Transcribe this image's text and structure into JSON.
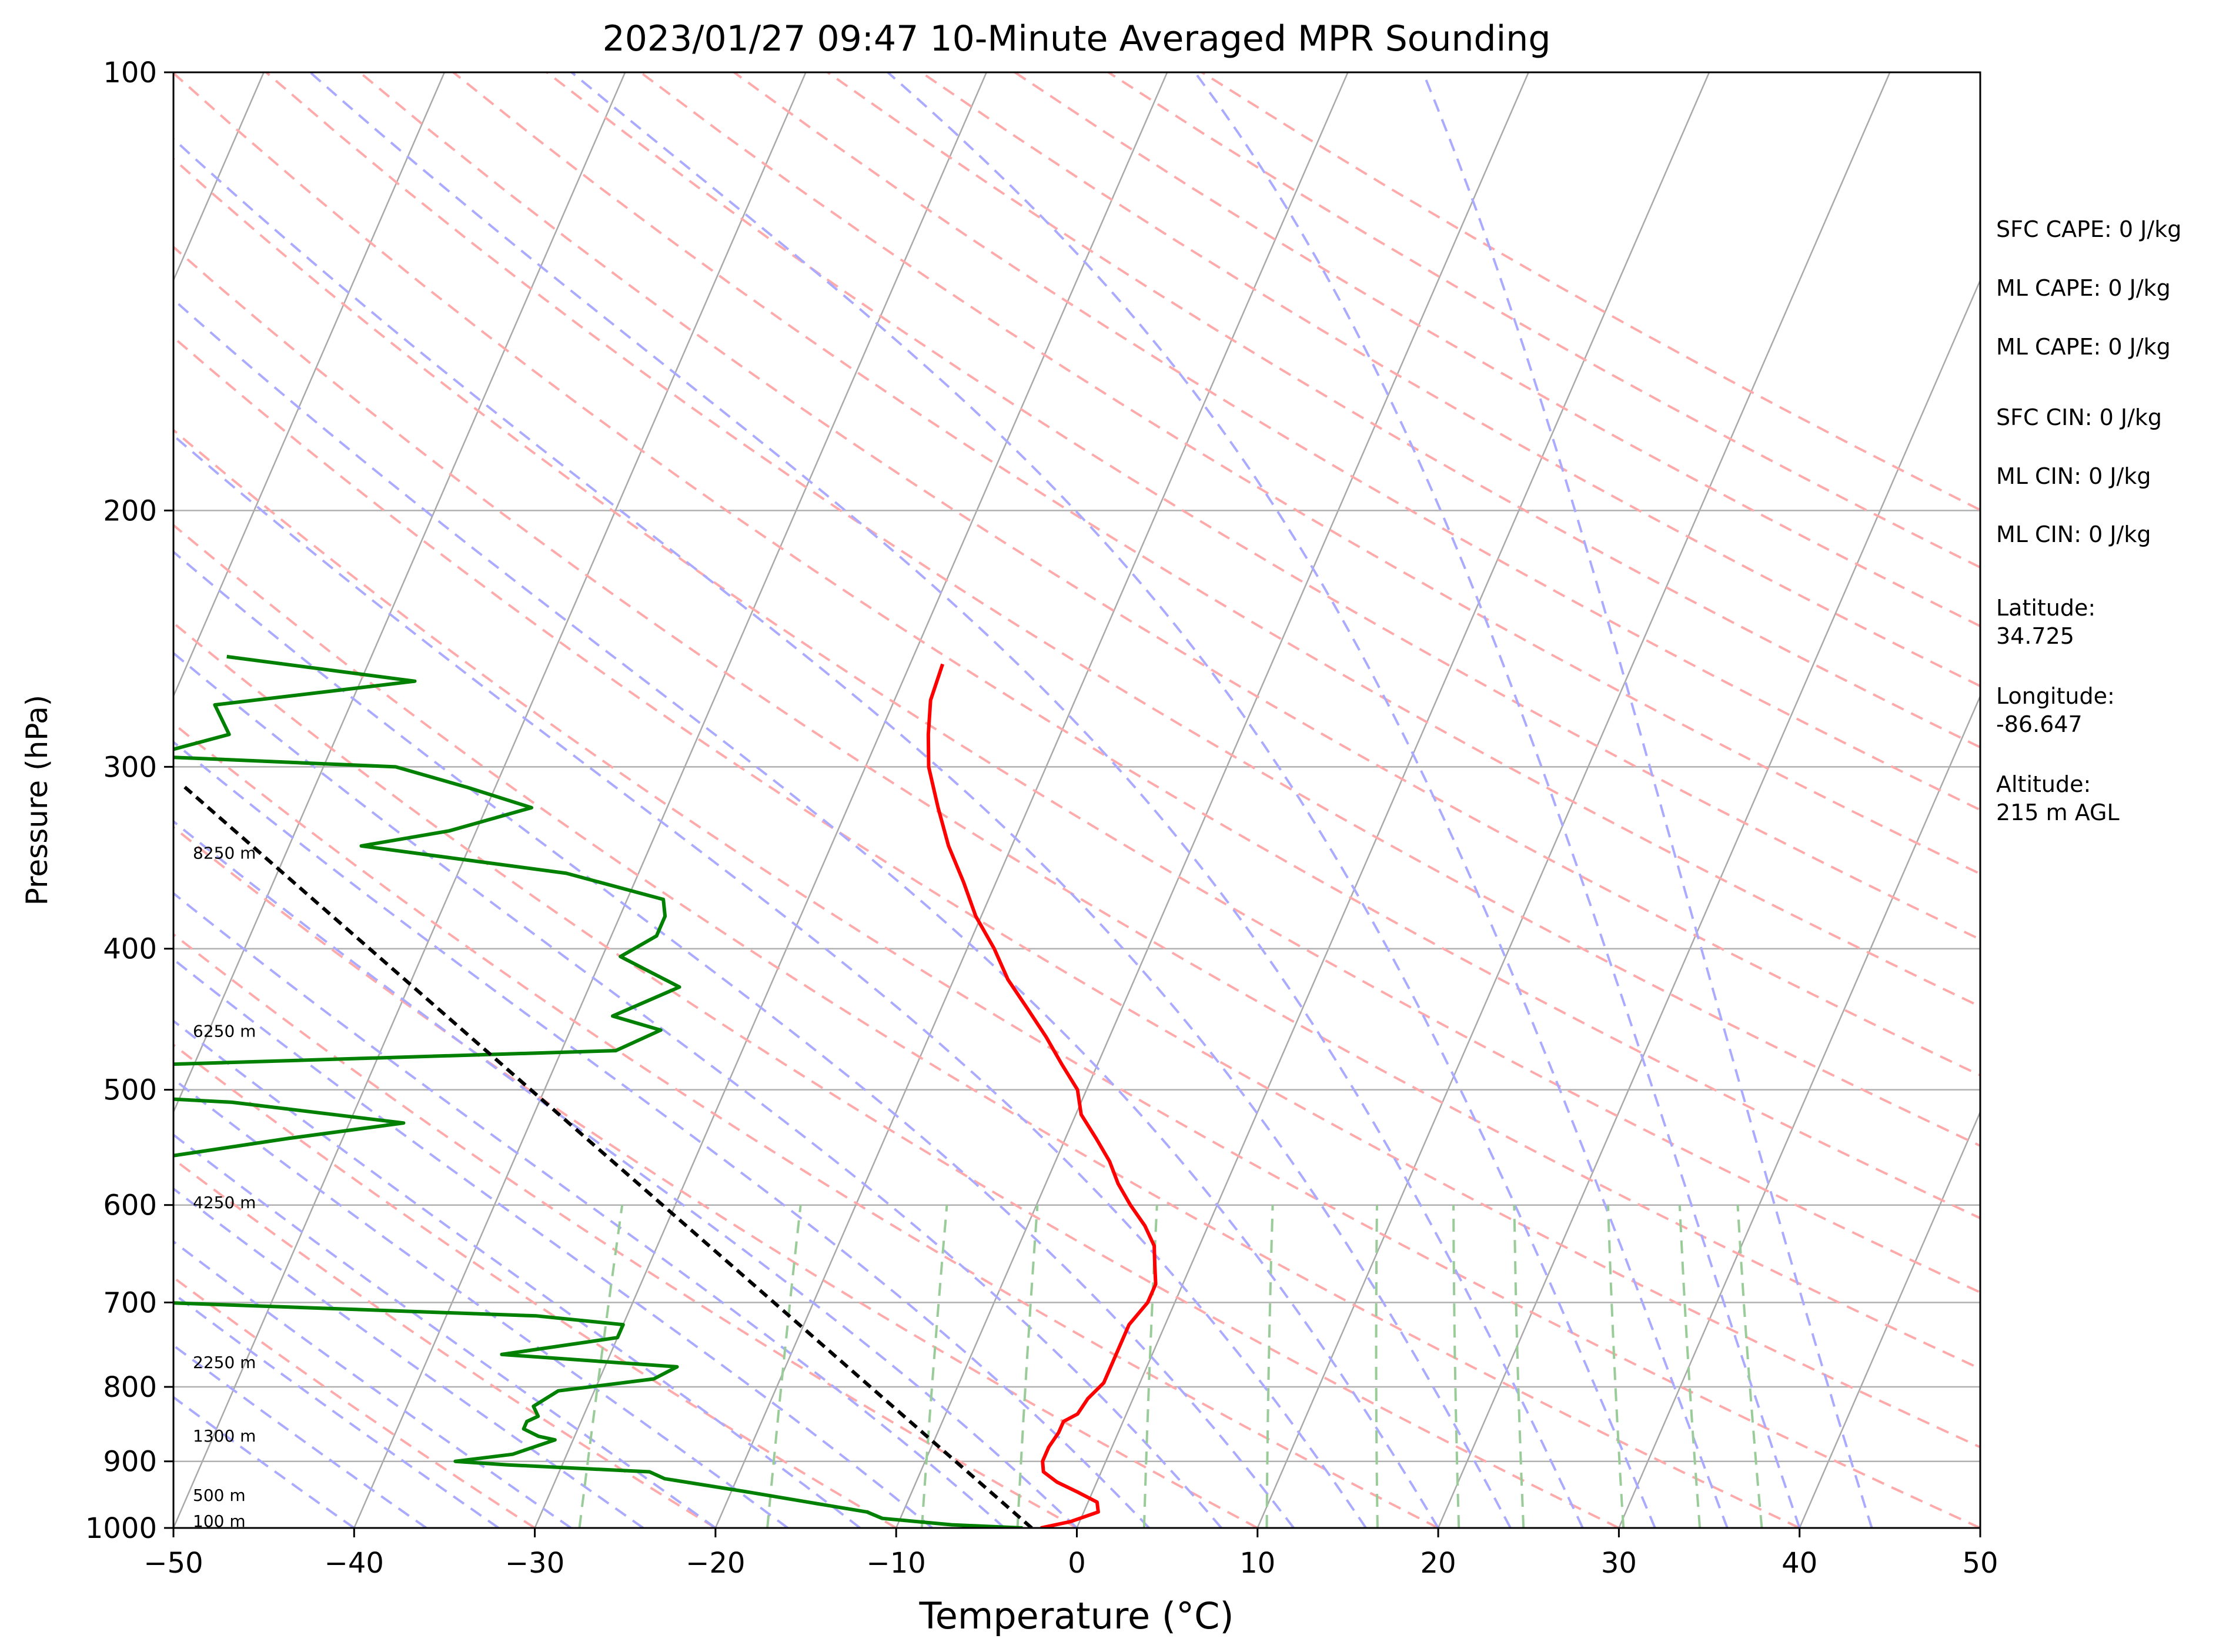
{
  "chart_data": {
    "type": "line",
    "title": "2023/01/27 09:47 10-Minute Averaged MPR Sounding",
    "xlabel": "Temperature (°C)",
    "ylabel": "Pressure (hPa)",
    "xlim": [
      -50,
      50
    ],
    "ylim": [
      1000,
      100
    ],
    "y_scale": "log",
    "skew": "skew-T",
    "grid": "on",
    "x_ticks": [
      "−50",
      "−40",
      "−30",
      "−20",
      "−10",
      "0",
      "10",
      "20",
      "30",
      "40",
      "50"
    ],
    "x_tick_values": [
      -50,
      -40,
      -30,
      -20,
      -10,
      0,
      10,
      20,
      30,
      40,
      50
    ],
    "y_ticks": [
      "100",
      "200",
      "300",
      "400",
      "500",
      "600",
      "700",
      "800",
      "900",
      "1000"
    ],
    "y_tick_values": [
      100,
      200,
      300,
      400,
      500,
      600,
      700,
      800,
      900,
      1000
    ],
    "series": [
      {
        "color": "#ff0000",
        "points": [
          [
            1000,
            -2.0
          ],
          [
            990,
            -0.5
          ],
          [
            975,
            0.8
          ],
          [
            960,
            0.5
          ],
          [
            945,
            -0.8
          ],
          [
            930,
            -2.2
          ],
          [
            915,
            -3.2
          ],
          [
            900,
            -3.5
          ],
          [
            880,
            -3.5
          ],
          [
            860,
            -3.3
          ],
          [
            845,
            -3.3
          ],
          [
            835,
            -2.7
          ],
          [
            815,
            -2.5
          ],
          [
            795,
            -2.0
          ],
          [
            775,
            -2.0
          ],
          [
            750,
            -2.0
          ],
          [
            725,
            -2.0
          ],
          [
            700,
            -1.5
          ],
          [
            680,
            -1.5
          ],
          [
            660,
            -2.0
          ],
          [
            640,
            -2.5
          ],
          [
            620,
            -3.5
          ],
          [
            600,
            -4.8
          ],
          [
            580,
            -6.0
          ],
          [
            560,
            -7.0
          ],
          [
            540,
            -8.3
          ],
          [
            520,
            -9.7
          ],
          [
            500,
            -10.5
          ],
          [
            480,
            -12.0
          ],
          [
            460,
            -13.5
          ],
          [
            440,
            -15.2
          ],
          [
            420,
            -17.0
          ],
          [
            400,
            -18.5
          ],
          [
            380,
            -20.3
          ],
          [
            360,
            -21.8
          ],
          [
            340,
            -23.5
          ],
          [
            320,
            -25.0
          ],
          [
            300,
            -26.5
          ],
          [
            285,
            -27.3
          ],
          [
            270,
            -28.0
          ],
          [
            255,
            -28.2
          ]
        ]
      },
      {
        "color": "#008000",
        "points": [
          [
            1000,
            -3.0
          ],
          [
            995,
            -7.0
          ],
          [
            985,
            -11.0
          ],
          [
            975,
            -12.0
          ],
          [
            960,
            -15.5
          ],
          [
            945,
            -19.0
          ],
          [
            925,
            -24.0
          ],
          [
            915,
            -25.0
          ],
          [
            905,
            -33.0
          ],
          [
            900,
            -36.0
          ],
          [
            890,
            -33.0
          ],
          [
            870,
            -31.0
          ],
          [
            865,
            -32.0
          ],
          [
            855,
            -33.0
          ],
          [
            845,
            -33.0
          ],
          [
            838,
            -32.5
          ],
          [
            825,
            -33.0
          ],
          [
            805,
            -32.0
          ],
          [
            790,
            -27.0
          ],
          [
            775,
            -26.0
          ],
          [
            760,
            -36.0
          ],
          [
            740,
            -30.0
          ],
          [
            725,
            -30.0
          ],
          [
            715,
            -35.0
          ],
          [
            680,
            -85.0
          ],
          [
            580,
            -73.0
          ],
          [
            565,
            -60.0
          ],
          [
            555,
            -59.0
          ],
          [
            540,
            -53.0
          ],
          [
            527,
            -47.0
          ],
          [
            510,
            -57.0
          ],
          [
            490,
            -84.0
          ],
          [
            470,
            -37.0
          ],
          [
            455,
            -35.0
          ],
          [
            445,
            -38.0
          ],
          [
            425,
            -35.0
          ],
          [
            405,
            -39.0
          ],
          [
            392,
            -37.5
          ],
          [
            380,
            -37.5
          ],
          [
            370,
            -38.0
          ],
          [
            355,
            -44.0
          ],
          [
            340,
            -56.0
          ],
          [
            332,
            -51.5
          ],
          [
            320,
            -47.5
          ],
          [
            310,
            -51.5
          ],
          [
            300,
            -56.0
          ],
          [
            295,
            -70.0
          ],
          [
            285,
            -66.0
          ],
          [
            272,
            -67.5
          ],
          [
            262,
            -57.0
          ],
          [
            252,
            -68.0
          ]
        ]
      },
      {
        "color": "#000000",
        "style": "dashed",
        "points": [
          [
            1000,
            -2.5
          ],
          [
            308,
            -67.5
          ]
        ]
      }
    ],
    "height_labels": [
      {
        "text": "100 m",
        "pressure": 990
      },
      {
        "text": "500 m",
        "pressure": 950
      },
      {
        "text": "1300 m",
        "pressure": 865
      },
      {
        "text": "2250 m",
        "pressure": 770
      },
      {
        "text": "4250 m",
        "pressure": 598
      },
      {
        "text": "6250 m",
        "pressure": 456
      },
      {
        "text": "8250 m",
        "pressure": 344
      }
    ],
    "annotations": [
      "SFC CAPE: 0 J/kg",
      "ML CAPE: 0 J/kg",
      "ML CAPE: 0 J/kg",
      "SFC CIN: 0 J/kg",
      "ML CIN: 0 J/kg",
      "ML CIN: 0 J/kg",
      "Latitude:\n34.725",
      "Longitude:\n-86.647",
      "Altitude:\n215 m AGL"
    ],
    "reference_lines": {
      "isotherms": {
        "color": "#a9a9a9"
      },
      "dry_adiabats": {
        "color": "#ffaaaa",
        "style": "dashed"
      },
      "moist_adiabats": {
        "color": "#aaaaff",
        "style": "dashed"
      },
      "mixing_ratio": {
        "color": "#99cc99",
        "style": "dashed"
      }
    }
  }
}
